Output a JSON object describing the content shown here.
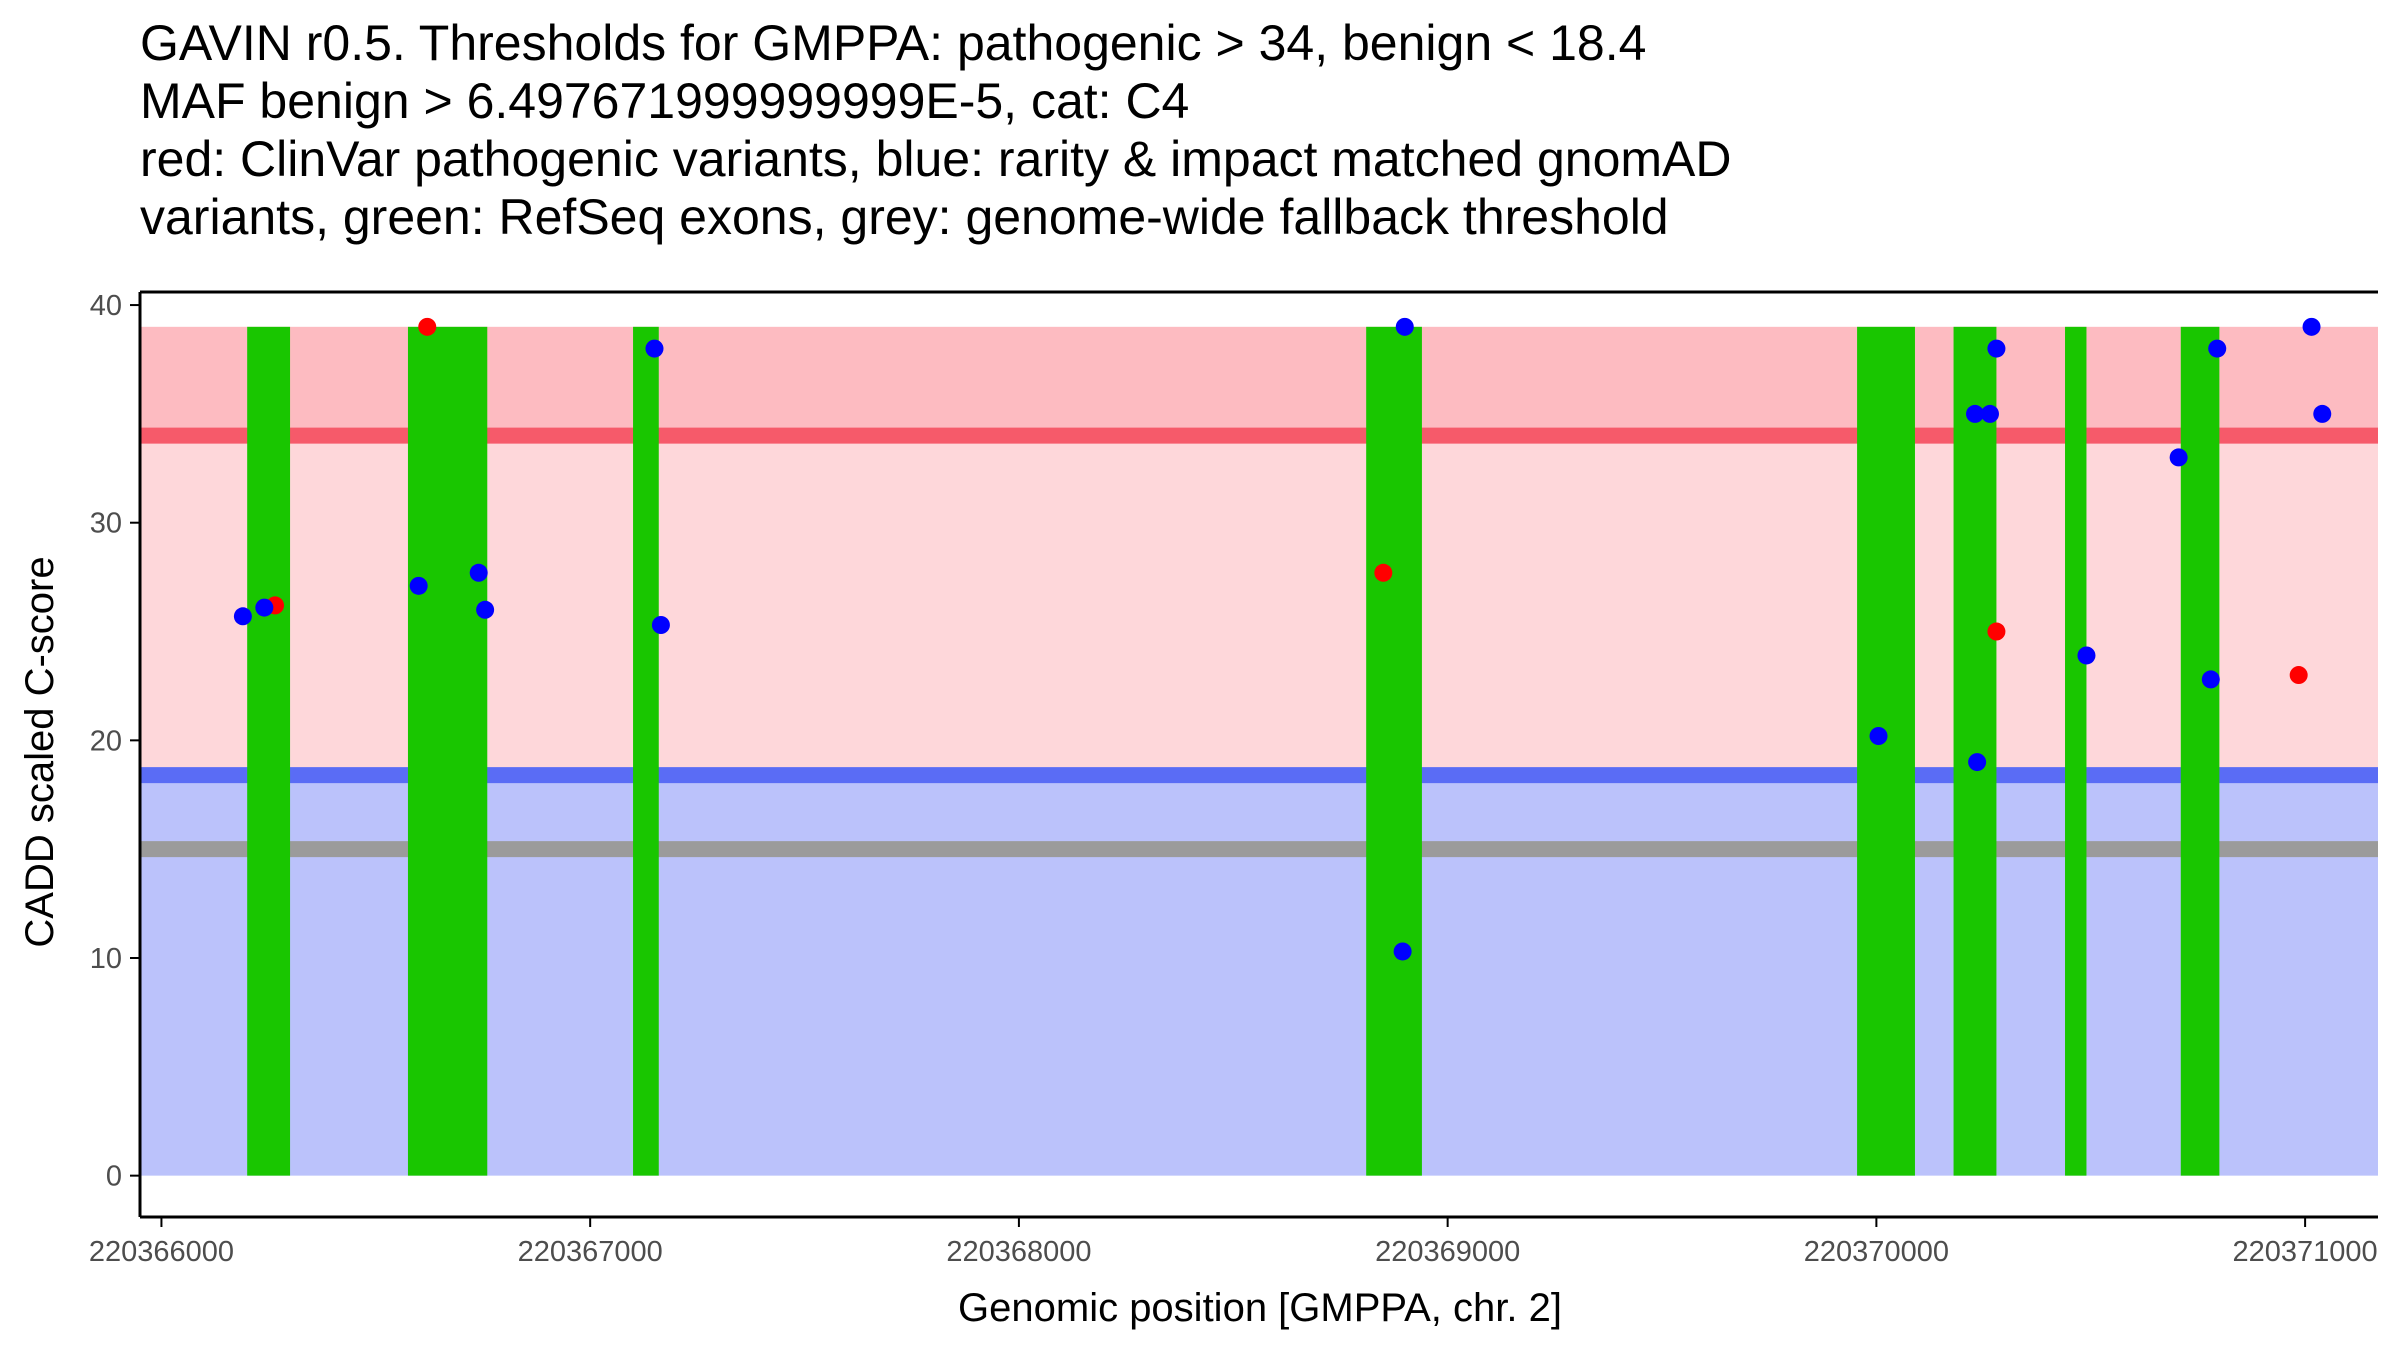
{
  "chart_data": {
    "type": "scatter",
    "title_lines": [
      "GAVIN r0.5. Thresholds for GMPPA: pathogenic > 34, benign < 18.4",
      "MAF benign > 6.497671999999999E-5, cat: C4",
      "red: ClinVar pathogenic variants, blue: rarity & impact matched gnomAD",
      "variants, green: RefSeq exons, grey: genome-wide fallback threshold"
    ],
    "xlabel": "Genomic position [GMPPA, chr. 2]",
    "ylabel": "CADD scaled C-score",
    "xlim": [
      220365950,
      220371170
    ],
    "ylim": [
      -1.9,
      40.6
    ],
    "x_ticks": [
      220366000,
      220367000,
      220368000,
      220369000,
      220370000,
      220371000
    ],
    "x_tick_labels": [
      "220366000",
      "220367000",
      "220368000",
      "220369000",
      "220370000",
      "220371000"
    ],
    "y_ticks": [
      0,
      10,
      20,
      30,
      40
    ],
    "y_tick_labels": [
      "0",
      "10",
      "20",
      "30",
      "40"
    ],
    "regions": [
      {
        "name": "pathogenic zone",
        "y0": 34,
        "y1": 39,
        "color": "#fdbbc1"
      },
      {
        "name": "VOUS zone",
        "y0": 18.4,
        "y1": 34,
        "color": "#fed7da"
      },
      {
        "name": "benign zone",
        "y0": 0,
        "y1": 18.4,
        "color": "#bbc2fb"
      }
    ],
    "thresholds": [
      {
        "name": "pathogenic threshold",
        "y": 34,
        "color": "#f65a6a"
      },
      {
        "name": "benign threshold",
        "y": 18.4,
        "color": "#5a6cf5"
      },
      {
        "name": "genome-wide fallback threshold",
        "y": 15,
        "color": "#9b9b9b"
      }
    ],
    "exons": [
      {
        "start": 220366200,
        "end": 220366300
      },
      {
        "start": 220366575,
        "end": 220366760
      },
      {
        "start": 220367100,
        "end": 220367160
      },
      {
        "start": 220368810,
        "end": 220368940
      },
      {
        "start": 220369955,
        "end": 220370090
      },
      {
        "start": 220370180,
        "end": 220370280
      },
      {
        "start": 220370440,
        "end": 220370490
      },
      {
        "start": 220370710,
        "end": 220370800
      }
    ],
    "series": [
      {
        "name": "ClinVar pathogenic variants",
        "color": "#ff0000",
        "points": [
          {
            "x": 220366265,
            "y": 26.2
          },
          {
            "x": 220366620,
            "y": 39.0
          },
          {
            "x": 220368850,
            "y": 27.7
          },
          {
            "x": 220370280,
            "y": 25.0
          },
          {
            "x": 220370985,
            "y": 23.0
          }
        ]
      },
      {
        "name": "rarity & impact matched gnomAD variants",
        "color": "#0000ff",
        "points": [
          {
            "x": 220366190,
            "y": 25.7
          },
          {
            "x": 220366240,
            "y": 26.1
          },
          {
            "x": 220366600,
            "y": 27.1
          },
          {
            "x": 220366740,
            "y": 27.7
          },
          {
            "x": 220366755,
            "y": 26.0
          },
          {
            "x": 220367150,
            "y": 38.0
          },
          {
            "x": 220367165,
            "y": 25.3
          },
          {
            "x": 220368900,
            "y": 39.0
          },
          {
            "x": 220368895,
            "y": 10.3
          },
          {
            "x": 220370005,
            "y": 20.2
          },
          {
            "x": 220370230,
            "y": 35.0
          },
          {
            "x": 220370265,
            "y": 35.0
          },
          {
            "x": 220370280,
            "y": 38.0
          },
          {
            "x": 220370235,
            "y": 19.0
          },
          {
            "x": 220370490,
            "y": 23.9
          },
          {
            "x": 220370705,
            "y": 33.0
          },
          {
            "x": 220370780,
            "y": 22.8
          },
          {
            "x": 220370795,
            "y": 38.0
          },
          {
            "x": 220371015,
            "y": 39.0
          },
          {
            "x": 220371040,
            "y": 35.0
          }
        ]
      }
    ],
    "colors": {
      "exon": "#19c600",
      "axis": "#000000",
      "tick_text": "#4d4d4d"
    }
  }
}
